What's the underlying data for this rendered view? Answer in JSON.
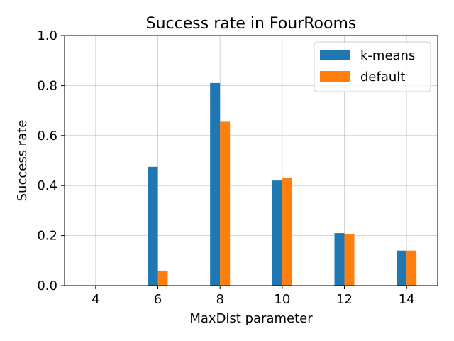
{
  "chart_data": {
    "type": "bar",
    "title": "Success rate in FourRooms",
    "xlabel": "MaxDist parameter",
    "ylabel": "Success rate",
    "categories": [
      "4",
      "6",
      "8",
      "10",
      "12",
      "14"
    ],
    "series": [
      {
        "name": "k-means",
        "color": "#1f77b4",
        "values": [
          0.0,
          0.475,
          0.81,
          0.42,
          0.21,
          0.14
        ]
      },
      {
        "name": "default",
        "color": "#ff7f0e",
        "values": [
          0.0,
          0.06,
          0.655,
          0.43,
          0.205,
          0.14
        ]
      }
    ],
    "ylim": [
      0,
      1.0
    ],
    "yticks": [
      "0.0",
      "0.2",
      "0.4",
      "0.6",
      "0.8",
      "1.0"
    ],
    "grid": true,
    "legend_position": "top-right"
  }
}
